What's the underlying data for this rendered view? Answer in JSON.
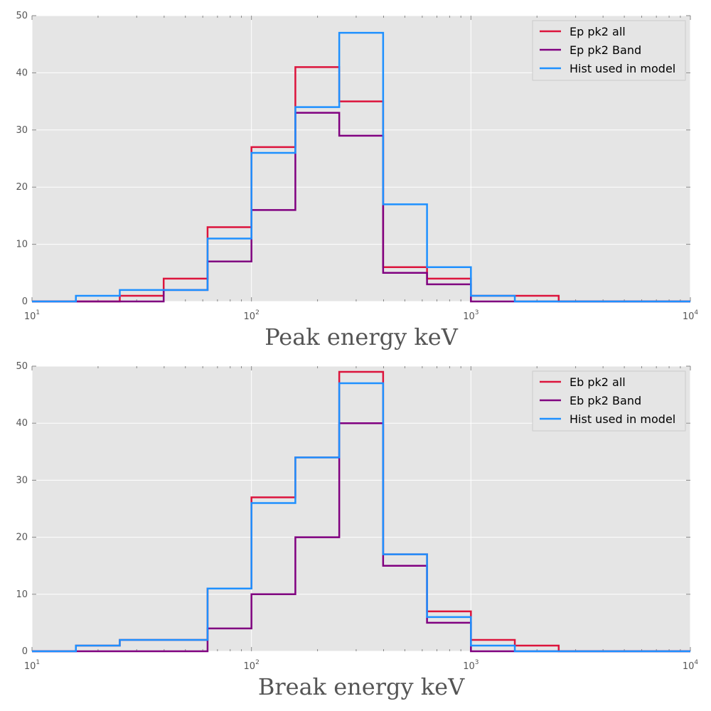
{
  "chart_data": [
    {
      "type": "histogram",
      "xlabel": "Peak energy keV",
      "ylabel": "",
      "xscale": "log",
      "xlim": [
        10,
        10000
      ],
      "ylim": [
        0,
        50
      ],
      "yticks": [
        "0",
        "10",
        "20",
        "30",
        "40",
        "50"
      ],
      "xticks": [
        {
          "base": "10",
          "exp": "1"
        },
        {
          "base": "10",
          "exp": "2"
        },
        {
          "base": "10",
          "exp": "3"
        },
        {
          "base": "10",
          "exp": "4"
        }
      ],
      "grid": true,
      "legend_position": "top-right",
      "bin_edges": [
        10,
        15.85,
        25.12,
        39.81,
        63.1,
        100,
        158.5,
        251.2,
        398.1,
        631,
        1000,
        1585,
        2512,
        3981,
        6310,
        10000
      ],
      "series": [
        {
          "name": "Ep pk2 all",
          "color": "#dc143c",
          "counts": [
            0,
            0,
            1,
            4,
            13,
            27,
            41,
            35,
            6,
            4,
            1,
            1,
            0,
            0,
            0
          ]
        },
        {
          "name": "Ep pk2 Band",
          "color": "#800080",
          "counts": [
            0,
            0,
            0,
            2,
            7,
            16,
            33,
            29,
            5,
            3,
            0,
            0,
            0,
            0,
            0
          ]
        },
        {
          "name": "Hist used in model",
          "color": "#1e90ff",
          "counts": [
            0,
            1,
            2,
            2,
            11,
            26,
            34,
            47,
            17,
            6,
            1,
            0,
            0,
            0,
            0
          ]
        }
      ]
    },
    {
      "type": "histogram",
      "xlabel": "Break energy keV",
      "ylabel": "",
      "xscale": "log",
      "xlim": [
        10,
        10000
      ],
      "ylim": [
        0,
        50
      ],
      "yticks": [
        "0",
        "10",
        "20",
        "30",
        "40",
        "50"
      ],
      "xticks": [
        {
          "base": "10",
          "exp": "1"
        },
        {
          "base": "10",
          "exp": "2"
        },
        {
          "base": "10",
          "exp": "3"
        },
        {
          "base": "10",
          "exp": "4"
        }
      ],
      "grid": true,
      "legend_position": "top-right",
      "bin_edges": [
        10,
        15.85,
        25.12,
        39.81,
        63.1,
        100,
        158.5,
        251.2,
        398.1,
        631,
        1000,
        1585,
        2512,
        3981,
        6310,
        10000
      ],
      "series": [
        {
          "name": "Eb pk2 all",
          "color": "#dc143c",
          "counts": [
            0,
            1,
            2,
            2,
            11,
            27,
            34,
            49,
            17,
            7,
            2,
            1,
            0,
            0,
            0
          ]
        },
        {
          "name": "Eb pk2 Band",
          "color": "#800080",
          "counts": [
            0,
            0,
            0,
            0,
            4,
            10,
            20,
            40,
            15,
            5,
            0,
            0,
            0,
            0,
            0
          ]
        },
        {
          "name": "Hist used in model",
          "color": "#1e90ff",
          "counts": [
            0,
            1,
            2,
            2,
            11,
            26,
            34,
            47,
            17,
            6,
            1,
            0,
            0,
            0,
            0
          ]
        }
      ]
    }
  ]
}
